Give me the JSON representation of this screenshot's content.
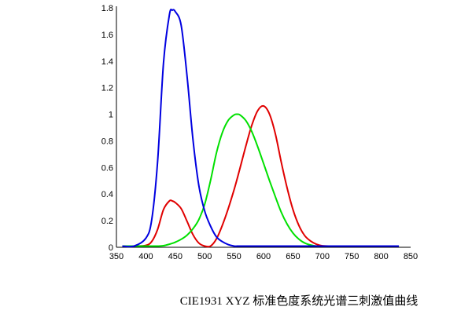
{
  "chart_data": {
    "type": "line",
    "title": "",
    "caption": "CIE1931 XYZ 标准色度系统光谱三刺激值曲线",
    "xlabel": "",
    "ylabel": "",
    "xlim": [
      350,
      850
    ],
    "ylim": [
      0,
      1.8
    ],
    "x_ticks": [
      "350",
      "400",
      "450",
      "500",
      "550",
      "600",
      "650",
      "700",
      "750",
      "800",
      "850"
    ],
    "y_ticks": [
      "0",
      "0.2",
      "0.4",
      "0.6",
      "0.8",
      "1",
      "1.2",
      "1.4",
      "1.6",
      "1.8"
    ],
    "grid": false,
    "legend": "none",
    "x": [
      360,
      380,
      400,
      410,
      420,
      430,
      440,
      445,
      450,
      460,
      470,
      480,
      490,
      500,
      510,
      520,
      530,
      540,
      550,
      555,
      560,
      570,
      580,
      590,
      600,
      610,
      620,
      630,
      640,
      650,
      660,
      670,
      680,
      690,
      700,
      720,
      750,
      780,
      800,
      830
    ],
    "series": [
      {
        "color": "#e00000",
        "values": [
          0.0,
          0.0014,
          0.0143,
          0.0435,
          0.1344,
          0.2839,
          0.3483,
          0.3481,
          0.3362,
          0.2908,
          0.1954,
          0.0956,
          0.032,
          0.0049,
          0.0093,
          0.0633,
          0.1655,
          0.2904,
          0.4334,
          0.5121,
          0.5945,
          0.7621,
          0.9163,
          1.0263,
          1.0622,
          1.0026,
          0.8544,
          0.6424,
          0.4479,
          0.2835,
          0.1649,
          0.0874,
          0.0468,
          0.0227,
          0.0114,
          0.003,
          0.0005,
          0.0,
          0.0,
          0.0
        ]
      },
      {
        "color": "#00e000",
        "values": [
          0.0,
          0.0,
          0.0004,
          0.0012,
          0.004,
          0.0116,
          0.023,
          0.0298,
          0.038,
          0.06,
          0.091,
          0.139,
          0.208,
          0.323,
          0.503,
          0.71,
          0.862,
          0.954,
          0.995,
          1.0,
          0.995,
          0.952,
          0.87,
          0.757,
          0.631,
          0.503,
          0.381,
          0.265,
          0.175,
          0.107,
          0.061,
          0.032,
          0.017,
          0.0082,
          0.0041,
          0.001,
          0.0002,
          0.0,
          0.0,
          0.0
        ]
      },
      {
        "color": "#0000e0",
        "values": [
          0.0,
          0.0065,
          0.0679,
          0.2074,
          0.6456,
          1.3856,
          1.7471,
          1.7826,
          1.7721,
          1.6692,
          1.2876,
          0.813,
          0.4652,
          0.272,
          0.1582,
          0.0782,
          0.0422,
          0.0203,
          0.0087,
          0.0057,
          0.0039,
          0.0021,
          0.0017,
          0.0011,
          0.0008,
          0.0003,
          0.0002,
          0.0,
          0.0,
          0.0,
          0.0,
          0.0,
          0.0,
          0.0,
          0.0,
          0.0,
          0.0,
          0.0,
          0.0,
          0.0
        ]
      }
    ]
  }
}
